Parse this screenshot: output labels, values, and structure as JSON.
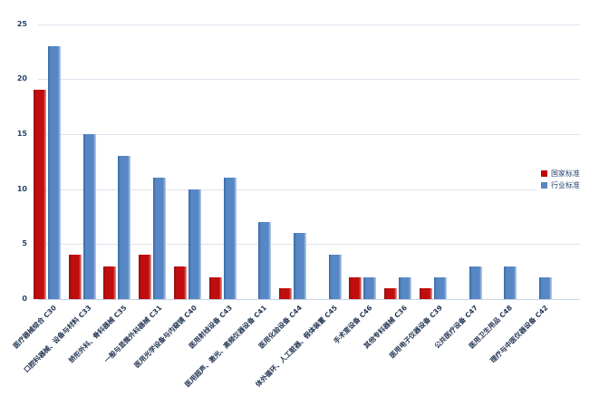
{
  "chart_data": {
    "type": "bar",
    "title": "",
    "xlabel": "",
    "ylabel": "",
    "categories": [
      "医疗器械综合 C30",
      "口腔科器械、设备与材料 C33",
      "矫形外科、骨科器械 C35",
      "一般与显微外科器械 C31",
      "医用光学设备与内窥镜 C40",
      "医用射线设备 C43",
      "医用超声、激光、高频仪器设备 C41",
      "医用化验设备 C44",
      "体外循环、人工脏器、假体装置 C45",
      "手术室设备 C46",
      "其他专科器械 C36",
      "医用电子仪器设备 C39",
      "公共医疗设备 C47",
      "医用卫生用品 C48",
      "理疗与中医仪器设备 C42"
    ],
    "series": [
      {
        "name": "国家标准",
        "color": "#c00000",
        "values": [
          19,
          4,
          3,
          4,
          3,
          2,
          0,
          1,
          0,
          2,
          1,
          1,
          0,
          0,
          0
        ]
      },
      {
        "name": "行业标准",
        "color": "#5787c4",
        "values": [
          23,
          15,
          13,
          11,
          10,
          11,
          7,
          6,
          4,
          2,
          2,
          2,
          3,
          3,
          2
        ]
      }
    ],
    "ylim": [
      0,
      25
    ],
    "yticks": [
      0,
      5,
      10,
      15,
      20,
      25
    ],
    "grid": true,
    "legend_position": "middle-right"
  },
  "colors": {
    "background": "#ffffff",
    "axis_text": "#24436b",
    "category_text": "#1f3250",
    "gridline": "#dce4ef",
    "national_standard": "#c00000",
    "industry_standard": "#5787c4"
  }
}
